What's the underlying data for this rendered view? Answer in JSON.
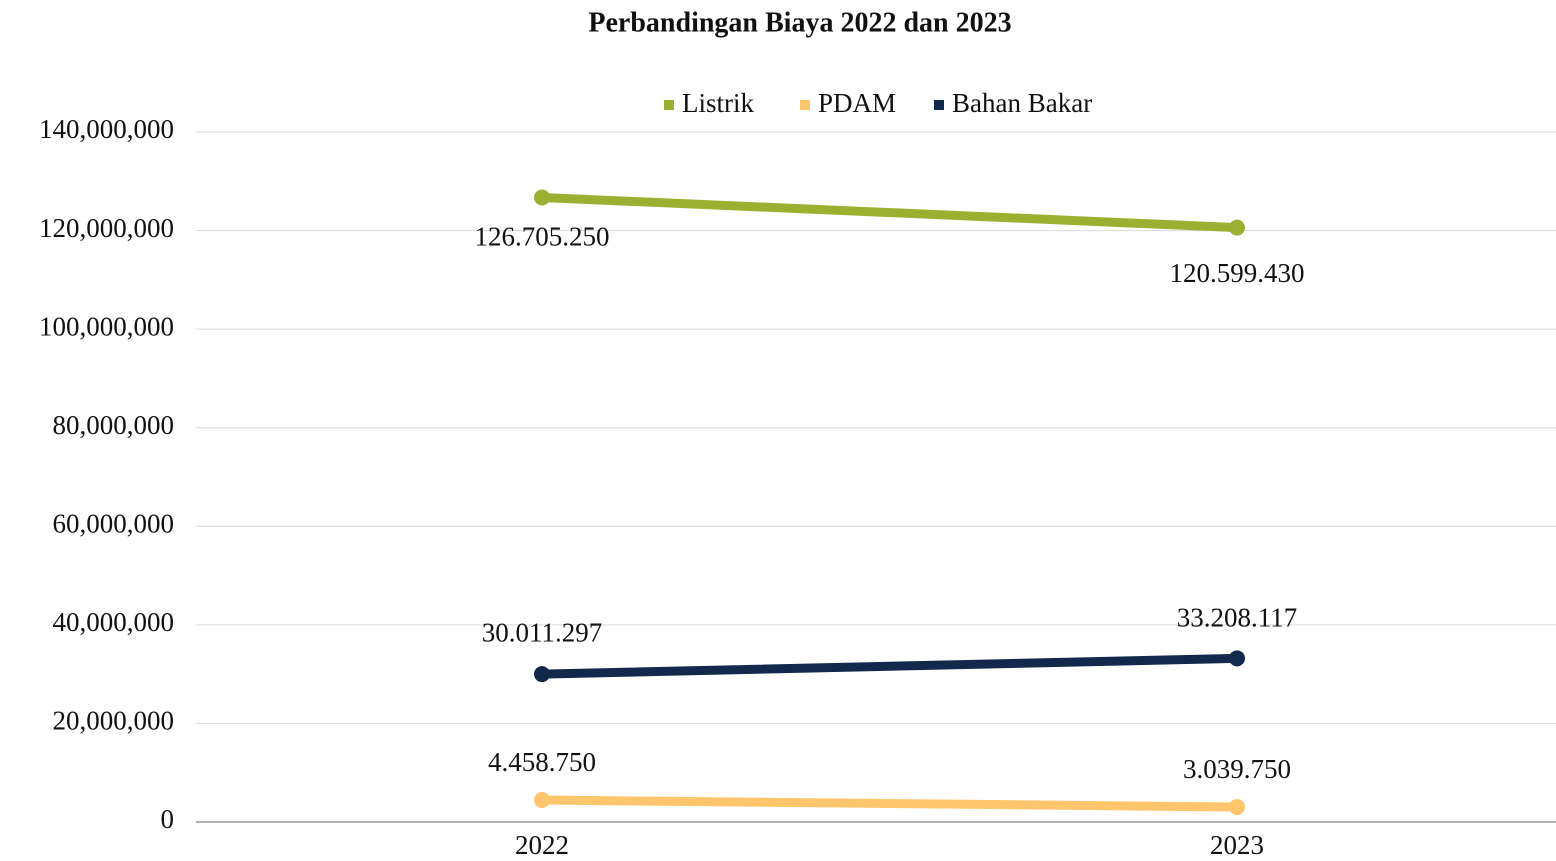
{
  "chart_data": {
    "type": "line",
    "title": "Perbandingan Biaya 2022 dan 2023",
    "categories": [
      "2022",
      "2023"
    ],
    "series": [
      {
        "name": "Listrik",
        "color": "#9bb030",
        "values": [
          126705250,
          120599430
        ],
        "value_labels": [
          "126.705.250",
          "120.599.430"
        ]
      },
      {
        "name": "PDAM",
        "color": "#fdc56c",
        "values": [
          4458750,
          3039750
        ],
        "value_labels": [
          "4.458.750",
          "3.039.750"
        ]
      },
      {
        "name": "Bahan Bakar",
        "color": "#13294b",
        "values": [
          30011297,
          33208117
        ],
        "value_labels": [
          "30.011.297",
          "33.208.117"
        ]
      }
    ],
    "ylim": [
      0,
      140000000
    ],
    "yticks": [
      0,
      {
        "value": 20000000,
        "label": "20,000,000"
      },
      {
        "value": 40000000,
        "label": "40,000,000"
      },
      {
        "value": 60000000,
        "label": "60,000,000"
      },
      {
        "value": 80000000,
        "label": "80,000,000"
      },
      {
        "value": 100000000,
        "label": "100,000,000"
      },
      {
        "value": 120000000,
        "label": "120,000,000"
      },
      {
        "value": 140000000,
        "label": "140,000,000"
      }
    ],
    "grid": true,
    "legend": "top"
  }
}
